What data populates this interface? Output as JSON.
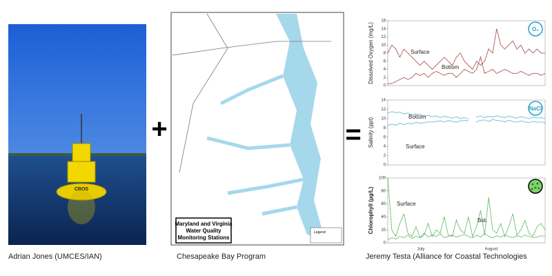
{
  "operators": {
    "plus": "+",
    "equals": "="
  },
  "photo": {
    "buoy_label": "CBOS",
    "caption": "Adrian Jones (UMCES/IAN)"
  },
  "map": {
    "title_lines": [
      "Maryland and Virginia",
      "Water Quality",
      "Monitoring Stations"
    ],
    "legend": "Legend",
    "caption": "Chesapeake Bay Program"
  },
  "charts_caption": "Jeremy Testa (Alliance for Coastal Technologies",
  "chart_data": [
    {
      "type": "line",
      "ylabel": "Dissolved Oxygen (mg/L)",
      "icon": "O₂",
      "ylim": [
        0,
        16
      ],
      "yticks": [
        0,
        2,
        4,
        6,
        8,
        10,
        12,
        14,
        16
      ],
      "annotations": [
        "Surface",
        "Bottom"
      ],
      "series": [
        {
          "name": "Surface",
          "color": "#8b1a1a",
          "values": [
            8,
            10,
            9,
            7,
            9,
            8,
            7,
            6,
            5,
            6,
            5,
            4,
            5,
            6,
            7,
            6,
            5,
            7,
            8,
            6,
            5,
            4,
            6,
            5,
            6,
            9,
            8,
            14,
            10,
            9,
            10,
            11,
            9,
            10,
            8,
            9,
            8,
            9,
            8,
            8
          ]
        },
        {
          "name": "Bottom",
          "color": "#8b1a1a",
          "values": [
            0.5,
            0.5,
            1,
            1.5,
            2,
            1.5,
            2,
            3,
            2.5,
            3,
            2,
            3,
            3.5,
            3,
            2.5,
            3,
            3,
            2,
            3,
            4,
            3.5,
            3,
            4,
            7,
            3,
            3.5,
            4,
            3,
            3.5,
            4,
            3.5,
            3,
            3,
            3.5,
            3,
            2.5,
            3,
            3,
            2.5,
            3
          ]
        }
      ]
    },
    {
      "type": "line",
      "ylabel": "Salinity (ppt)",
      "icon": "NaCl",
      "ylim": [
        0,
        14
      ],
      "yticks": [
        0,
        2,
        4,
        6,
        8,
        10,
        12,
        14
      ],
      "annotations": [
        "Bottom",
        "Surface"
      ],
      "series": [
        {
          "name": "Bottom",
          "color": "#2a9fc4",
          "values": [
            11.2,
            11.5,
            11.3,
            11.4,
            11,
            11.2,
            10.8,
            11,
            10.9,
            10.5,
            10.7,
            10.4,
            10.6,
            10.2,
            10.5,
            10.3,
            10.1,
            10.4,
            10,
            10.2,
            9.9,
            null,
            10.3,
            10.6,
            10.2,
            10.5,
            10.3,
            10.6,
            10.4,
            10.2,
            10.5,
            10.3,
            10.1,
            10.4,
            10.2,
            10,
            10.3,
            10.1,
            10.2,
            10
          ]
        },
        {
          "name": "Surface",
          "color": "#2a9fc4",
          "values": [
            8.5,
            8.8,
            8.6,
            9,
            8.7,
            9,
            8.8,
            9.2,
            9,
            9.1,
            9.3,
            9.2,
            9.4,
            9.5,
            9.3,
            9.6,
            9.4,
            9.2,
            9.5,
            9.6,
            9.5,
            null,
            9.3,
            9.6,
            9.7,
            9.4,
            9.8,
            9.6,
            9.5,
            9.3,
            9.6,
            9.4,
            9.2,
            9.5,
            9.3,
            9.1,
            9.4,
            9.2,
            9.3,
            9.1
          ]
        }
      ]
    },
    {
      "type": "line",
      "ylabel": "Chlorophyll (µg/L)",
      "ylim": [
        0,
        100
      ],
      "yticks": [
        0,
        20,
        40,
        60,
        80,
        100
      ],
      "xtick_labels": [
        "July",
        "August"
      ],
      "annotations": [
        "Surface",
        "Bot."
      ],
      "series": [
        {
          "name": "Surface",
          "color": "#3aa63a",
          "values": [
            100,
            20,
            10,
            30,
            45,
            15,
            10,
            25,
            8,
            12,
            30,
            10,
            20,
            15,
            40,
            12,
            10,
            35,
            20,
            15,
            40,
            10,
            25,
            50,
            12,
            70,
            20,
            15,
            30,
            10,
            25,
            45,
            12,
            20,
            35,
            15,
            10,
            25,
            30,
            20
          ]
        },
        {
          "name": "Bot.",
          "color": "#3aa63a",
          "values": [
            5,
            8,
            6,
            10,
            8,
            12,
            7,
            10,
            8,
            15,
            9,
            12,
            10,
            14,
            8,
            10,
            12,
            9,
            11,
            13,
            10,
            8,
            12,
            9,
            14,
            10,
            8,
            11,
            9,
            12,
            10,
            8,
            11,
            9,
            12,
            10,
            8,
            9,
            11,
            10
          ]
        }
      ]
    }
  ]
}
